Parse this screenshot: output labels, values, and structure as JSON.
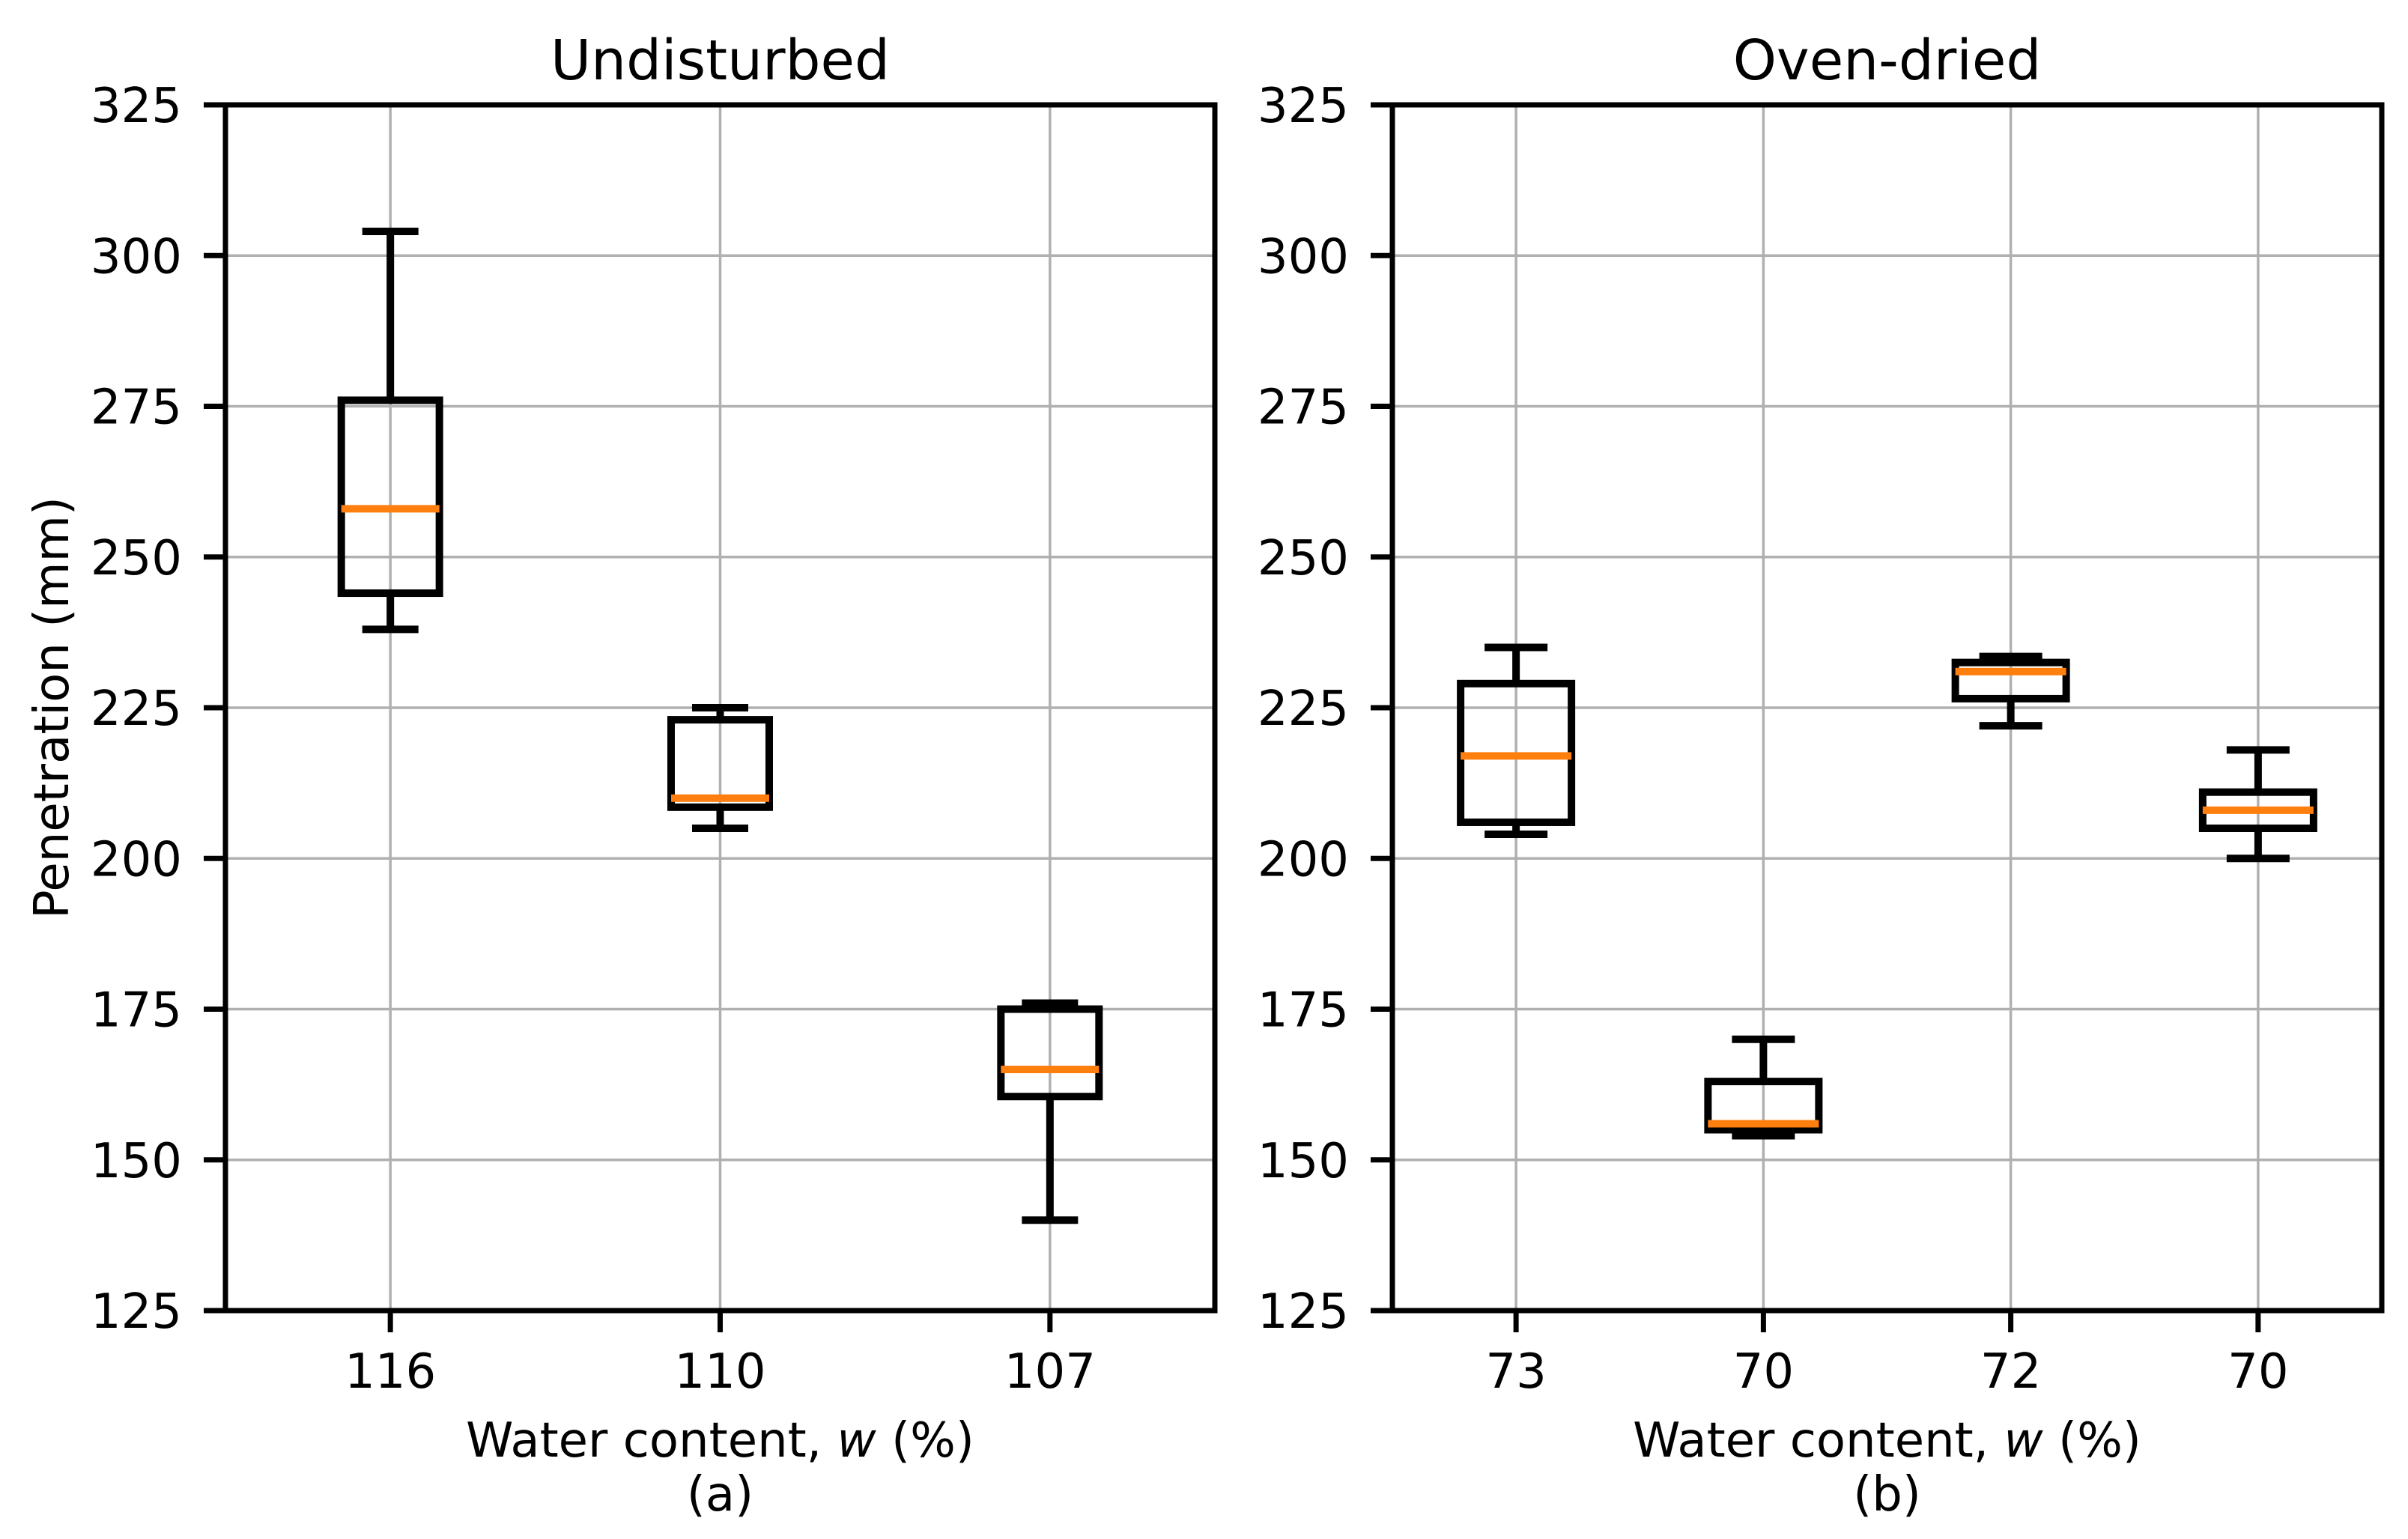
{
  "figure": {
    "background": "#ffffff",
    "ylabel": "Penetration (mm)"
  },
  "style": {
    "median_color": "#ff7f0e",
    "box_color": "#000000",
    "grid_color": "#b0b0b0",
    "spine_color": "#000000",
    "text_color": "#000000"
  },
  "chart_data": [
    {
      "type": "box",
      "panel": "a",
      "title": "Undisturbed",
      "caption": "(a)",
      "xlabel_prefix": "Water content, ",
      "xlabel_var": "w",
      "xlabel_suffix": " (%)",
      "ylabel": "Penetration (mm)",
      "categories": [
        "116",
        "110",
        "107"
      ],
      "ylim": [
        125,
        325
      ],
      "yticks": [
        125,
        150,
        175,
        200,
        225,
        250,
        275,
        300,
        325
      ],
      "grid": true,
      "boxes": [
        {
          "category": "116",
          "whislo": 238,
          "q1": 244,
          "med": 258,
          "q3": 276,
          "whishi": 304
        },
        {
          "category": "110",
          "whislo": 205,
          "q1": 208.5,
          "med": 210,
          "q3": 223,
          "whishi": 225
        },
        {
          "category": "107",
          "whislo": 140,
          "q1": 160.5,
          "med": 165,
          "q3": 175,
          "whishi": 176
        }
      ]
    },
    {
      "type": "box",
      "panel": "b",
      "title": "Oven-dried",
      "caption": "(b)",
      "xlabel_prefix": "Water content, ",
      "xlabel_var": "w",
      "xlabel_suffix": " (%)",
      "ylabel": null,
      "categories": [
        "73",
        "70",
        "72",
        "70"
      ],
      "ylim": [
        125,
        325
      ],
      "yticks": [
        125,
        150,
        175,
        200,
        225,
        250,
        275,
        300,
        325
      ],
      "grid": true,
      "boxes": [
        {
          "category": "73",
          "whislo": 204,
          "q1": 206,
          "med": 217,
          "q3": 229,
          "whishi": 235
        },
        {
          "category": "70",
          "whislo": 154,
          "q1": 155,
          "med": 156,
          "q3": 163,
          "whishi": 170
        },
        {
          "category": "72",
          "whislo": 222,
          "q1": 226.5,
          "med": 231,
          "q3": 232.5,
          "whishi": 233.5
        },
        {
          "category": "70",
          "whislo": 200,
          "q1": 205,
          "med": 208,
          "q3": 211,
          "whishi": 218
        }
      ]
    }
  ]
}
